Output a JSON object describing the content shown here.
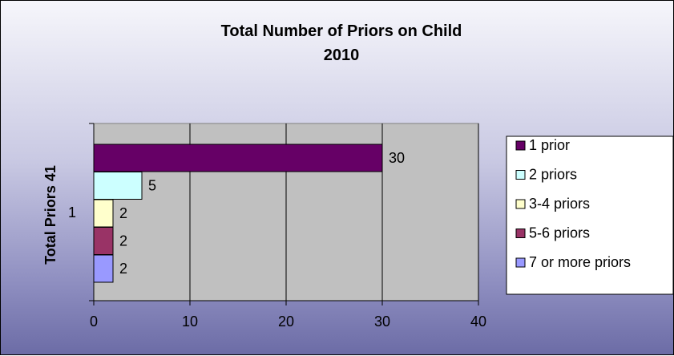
{
  "chart_data": {
    "type": "bar",
    "orientation": "horizontal",
    "title": "Total Number of Priors on Child",
    "subtitle": "2010",
    "ylabel": "Total Priors 41",
    "categories": [
      "1"
    ],
    "series": [
      {
        "name": "1 prior",
        "values": [
          30
        ],
        "color": "#660066"
      },
      {
        "name": "2 priors",
        "values": [
          5
        ],
        "color": "#ccffff"
      },
      {
        "name": "3-4 priors",
        "values": [
          2
        ],
        "color": "#ffffcc"
      },
      {
        "name": "5-6 priors",
        "values": [
          2
        ],
        "color": "#993366"
      },
      {
        "name": "7 or more priors",
        "values": [
          2
        ],
        "color": "#9999ff"
      }
    ],
    "xlim": [
      0,
      40
    ],
    "xticks": [
      0,
      10,
      20,
      30,
      40
    ],
    "grid": true,
    "legend_position": "right",
    "plot_background": "#c0c0c0"
  }
}
